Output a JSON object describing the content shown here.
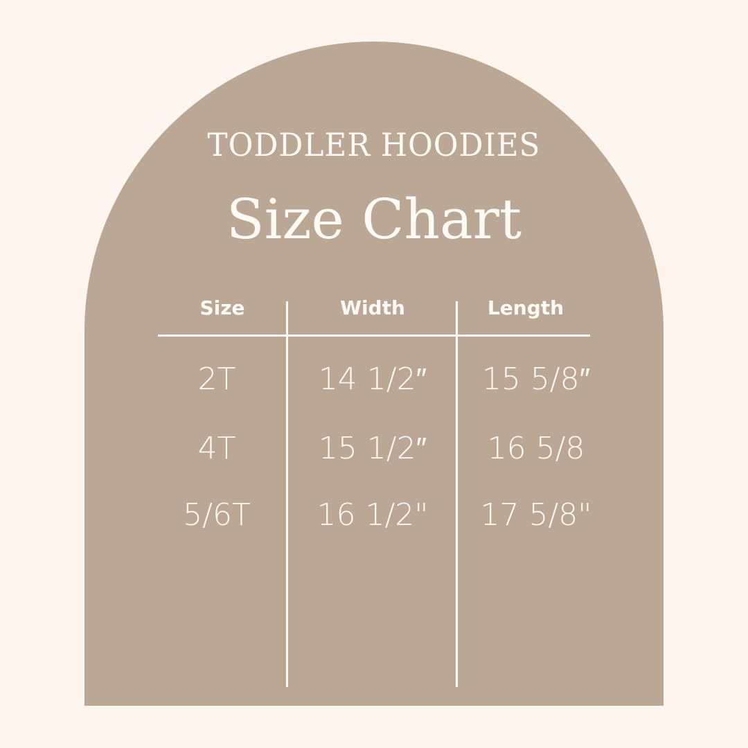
{
  "header": {
    "subtitle": "TODDLER HOODIES",
    "title": "Size Chart"
  },
  "table": {
    "columns": [
      "Size",
      "Width",
      "Length"
    ],
    "rows": [
      [
        "2T",
        "14 1/2″",
        "15 5/8″"
      ],
      [
        "4T",
        "15 1/2″",
        "16 5/8"
      ],
      [
        "5/6T",
        "16 1/2\"",
        "17 5/8\""
      ]
    ]
  },
  "colors": {
    "background": "#fdf5ee",
    "arch": "#bba795",
    "text": "#fffaf3"
  }
}
